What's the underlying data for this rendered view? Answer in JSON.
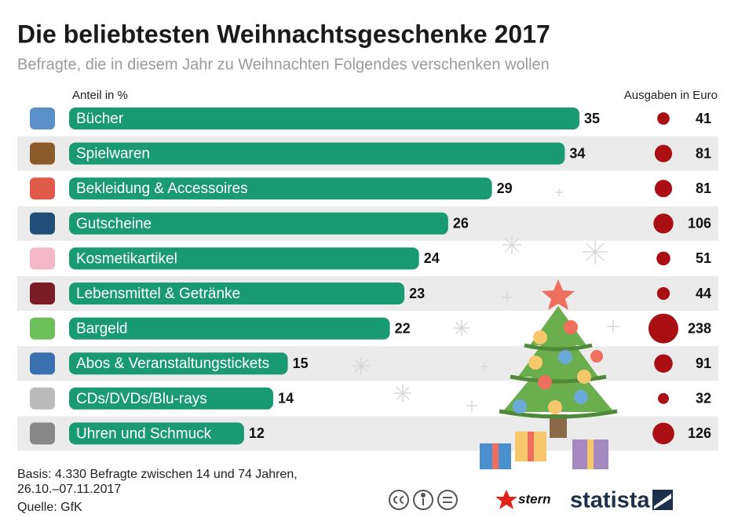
{
  "chart_data": {
    "type": "bar",
    "title": "Die beliebtesten Weihnachtsgeschenke 2017",
    "subtitle": "Befragte, die in diesem Jahr zu Weihnachten Folgendes verschenken wollen",
    "categories": [
      "Bücher",
      "Spielwaren",
      "Bekleidung & Accessoires",
      "Gutscheine",
      "Kosmetikartikel",
      "Lebensmittel & Getränke",
      "Bargeld",
      "Abos & Veranstaltungstickets",
      "CDs/DVDs/Blu-rays",
      "Uhren und Schmuck"
    ],
    "series": [
      {
        "name": "Anteil in %",
        "color": "#1a9a73",
        "values": [
          35,
          34,
          29,
          26,
          24,
          23,
          22,
          15,
          14,
          12
        ]
      },
      {
        "name": "Ausgaben in Euro",
        "color": "#a90f13",
        "values": [
          41,
          81,
          81,
          106,
          51,
          44,
          238,
          91,
          32,
          126
        ]
      }
    ],
    "notes": [
      "Basis: 4.330 Befragte zwischen 14 und 74 Jahren,",
      "26.10.–07.11.2017",
      "Quelle: GfK"
    ],
    "branding": [
      "stern",
      "statista"
    ]
  }
}
